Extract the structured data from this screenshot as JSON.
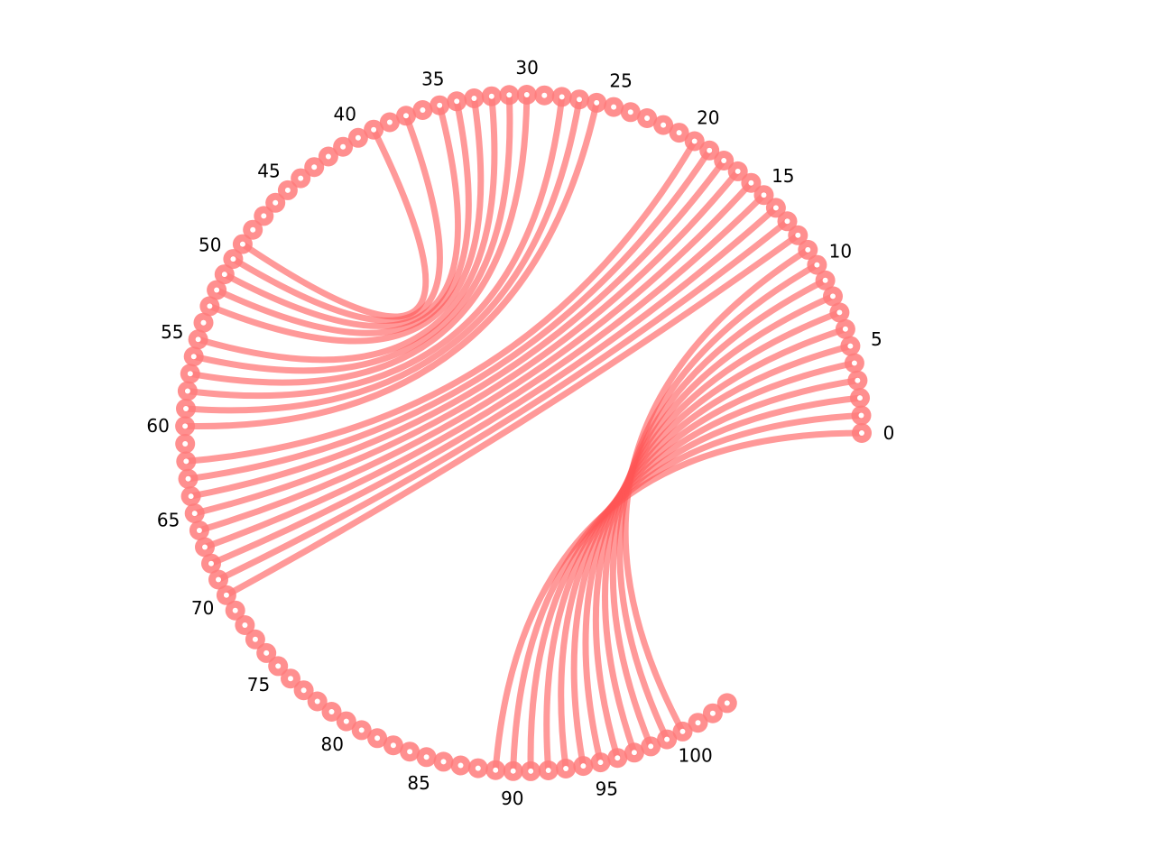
{
  "diagram": {
    "type": "arc-diagram",
    "node_count": 104,
    "start_angle_deg": 0,
    "sweep_deg": 310,
    "labels": [
      "0",
      "5",
      "10",
      "15",
      "20",
      "25",
      "30",
      "35",
      "40",
      "45",
      "50",
      "55",
      "60",
      "65",
      "70",
      "75",
      "80",
      "85",
      "90",
      "95",
      "100"
    ],
    "label_step": 5,
    "colors": {
      "edge": "#ff5555",
      "node": "#ff7b7b",
      "node_center": "#ffffff"
    },
    "edges": [
      [
        0,
        89
      ],
      [
        1,
        90
      ],
      [
        2,
        91
      ],
      [
        3,
        92
      ],
      [
        4,
        93
      ],
      [
        5,
        94
      ],
      [
        6,
        95
      ],
      [
        7,
        96
      ],
      [
        8,
        97
      ],
      [
        9,
        98
      ],
      [
        10,
        99
      ],
      [
        11,
        100
      ],
      [
        12,
        70
      ],
      [
        13,
        69
      ],
      [
        14,
        68
      ],
      [
        15,
        67
      ],
      [
        16,
        66
      ],
      [
        17,
        65
      ],
      [
        18,
        64
      ],
      [
        19,
        63
      ],
      [
        20,
        62
      ],
      [
        26,
        60
      ],
      [
        27,
        59
      ],
      [
        28,
        58
      ],
      [
        30,
        57
      ],
      [
        31,
        56
      ],
      [
        32,
        55
      ],
      [
        33,
        53
      ],
      [
        34,
        52
      ],
      [
        35,
        51
      ],
      [
        37,
        50
      ],
      [
        39,
        49
      ]
    ]
  }
}
